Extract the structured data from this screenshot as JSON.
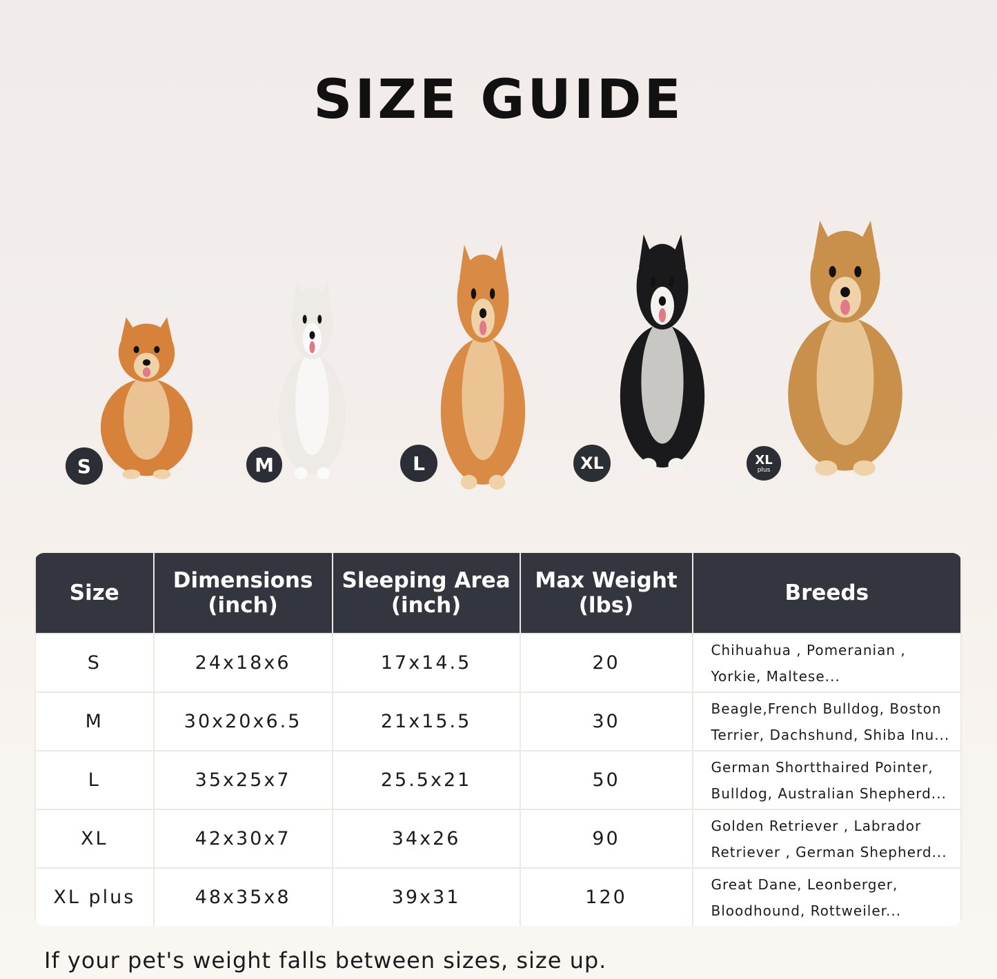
{
  "title": "SIZE GUIDE",
  "badges": [
    {
      "label": "S",
      "sub": ""
    },
    {
      "label": "M",
      "sub": ""
    },
    {
      "label": "L",
      "sub": ""
    },
    {
      "label": "XL",
      "sub": ""
    },
    {
      "label": "XL",
      "sub": "plus"
    }
  ],
  "dogs": [
    {
      "breed": "Pomeranian",
      "color": "#d7823a"
    },
    {
      "breed": "French Bulldog",
      "color": "#eeeae6"
    },
    {
      "breed": "Shiba Inu",
      "color": "#d98a45"
    },
    {
      "breed": "Border Collie",
      "color": "#1a1a1c"
    },
    {
      "breed": "Golden Retriever",
      "color": "#c8904a"
    }
  ],
  "table": {
    "headers": [
      "Size",
      "Dimensions\n(inch)",
      "Sleeping Area\n(inch)",
      "Max Weight\n(lbs)",
      "Breeds"
    ],
    "rows": [
      {
        "size": "S",
        "dimensions": "24x18x6",
        "sleeping": "17x14.5",
        "weight": "20",
        "breeds": [
          "Chihuahua , Pomeranian ,",
          "Yorkie, Maltese..."
        ]
      },
      {
        "size": "M",
        "dimensions": "30x20x6.5",
        "sleeping": "21x15.5",
        "weight": "30",
        "breeds": [
          "Beagle,French Bulldog, Boston",
          "Terrier, Dachshund, Shiba Inu..."
        ]
      },
      {
        "size": "L",
        "dimensions": "35x25x7",
        "sleeping": "25.5x21",
        "weight": "50",
        "breeds": [
          "German Shortthaired Pointer,",
          "Bulldog, Australian Shepherd..."
        ]
      },
      {
        "size": "XL",
        "dimensions": "42x30x7",
        "sleeping": "34x26",
        "weight": "90",
        "breeds": [
          "Golden Retriever , Labrador",
          "Retriever , German Shepherd..."
        ]
      },
      {
        "size": "XL plus",
        "dimensions": "48x35x8",
        "sleeping": "39x31",
        "weight": "120",
        "breeds": [
          "Great Dane, Leonberger,",
          "Bloodhound, Rottweiler..."
        ]
      }
    ]
  },
  "note": "If your pet's weight falls between sizes, size up."
}
